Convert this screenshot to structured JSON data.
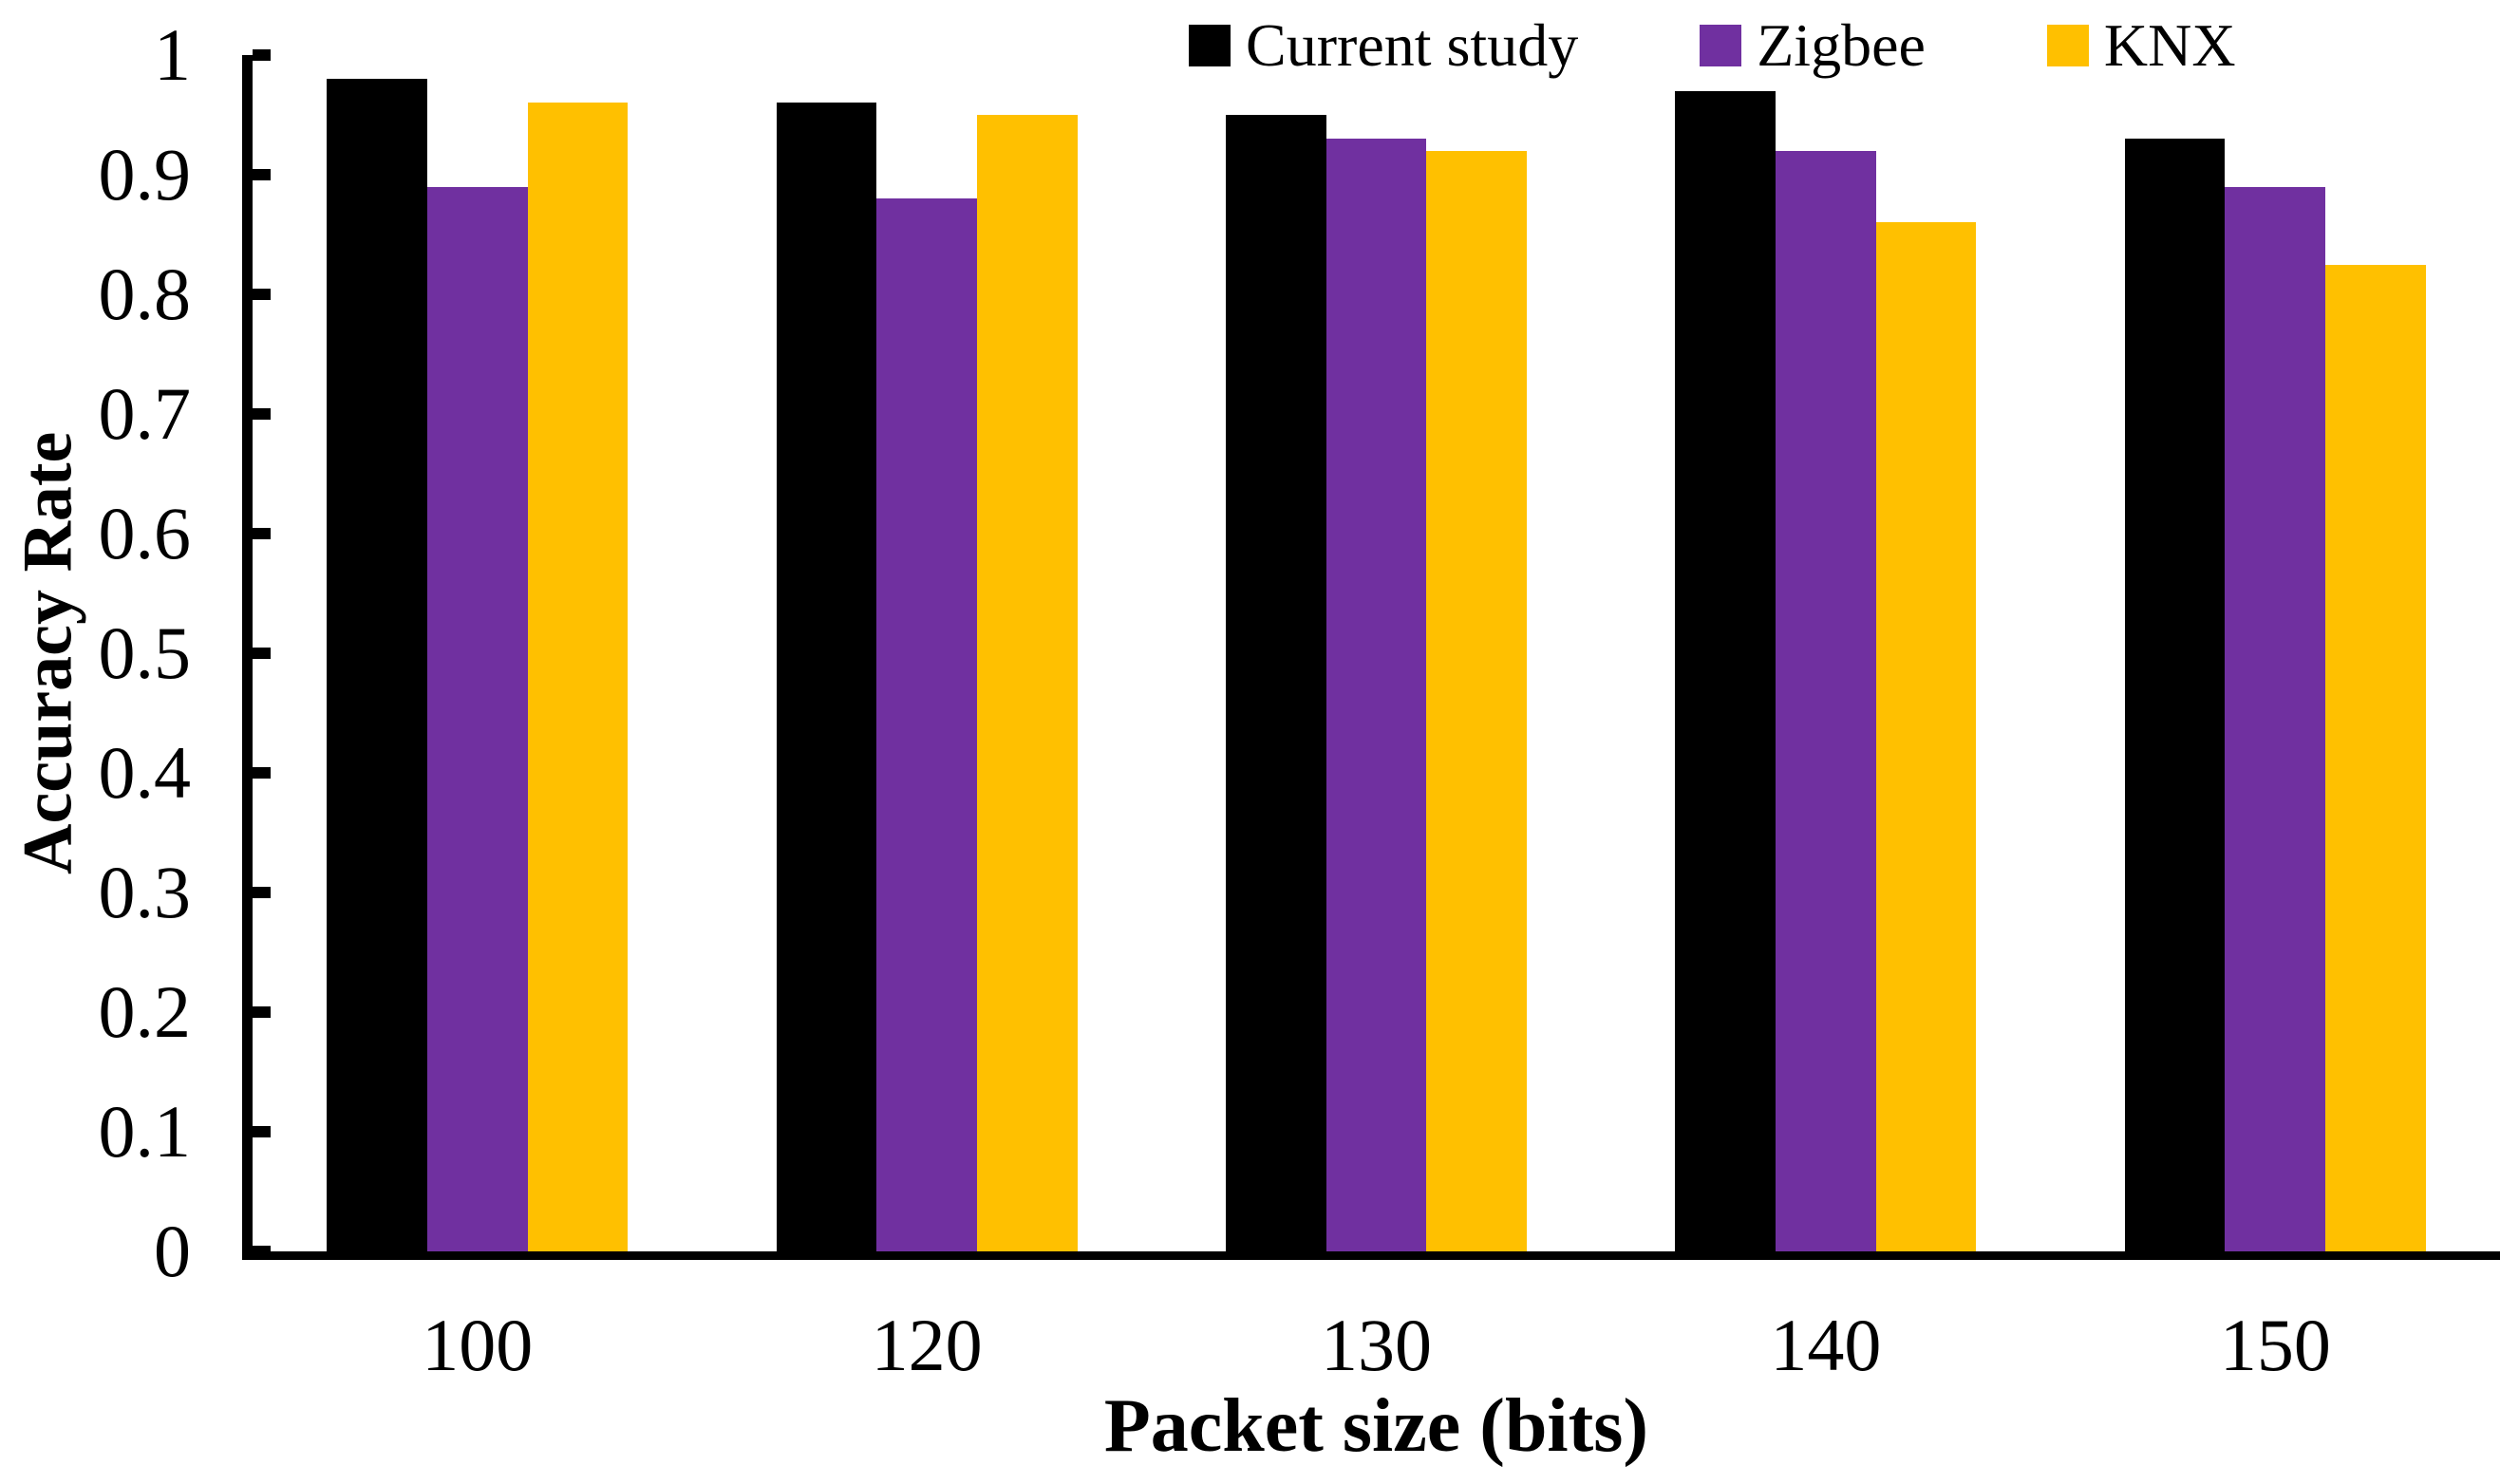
{
  "chart_data": {
    "type": "bar",
    "title": "",
    "xlabel": "Packet size (bits)",
    "ylabel": "Accuracy Rate",
    "categories": [
      "100",
      "120",
      "130",
      "140",
      "150"
    ],
    "series": [
      {
        "name": "Current study",
        "color": "#000000",
        "values": [
          0.98,
          0.96,
          0.95,
          0.97,
          0.93
        ]
      },
      {
        "name": "Zigbee",
        "color": "#7030A0",
        "values": [
          0.89,
          0.88,
          0.93,
          0.92,
          0.89
        ]
      },
      {
        "name": "KNX",
        "color": "#FFC000",
        "values": [
          0.96,
          0.95,
          0.92,
          0.86,
          0.825
        ]
      }
    ],
    "ylim": [
      0,
      1
    ],
    "yticks": [
      0,
      0.1,
      0.2,
      0.3,
      0.4,
      0.5,
      0.6,
      0.7,
      0.8,
      0.9,
      1
    ],
    "ytick_labels": [
      "0",
      "0.1",
      "0.2",
      "0.3",
      "0.4",
      "0.5",
      "0.6",
      "0.7",
      "0.8",
      "0.9",
      "1"
    ],
    "grid": false,
    "legend_position": "top-right",
    "background": "#ffffff",
    "axis_color": "#000000"
  }
}
